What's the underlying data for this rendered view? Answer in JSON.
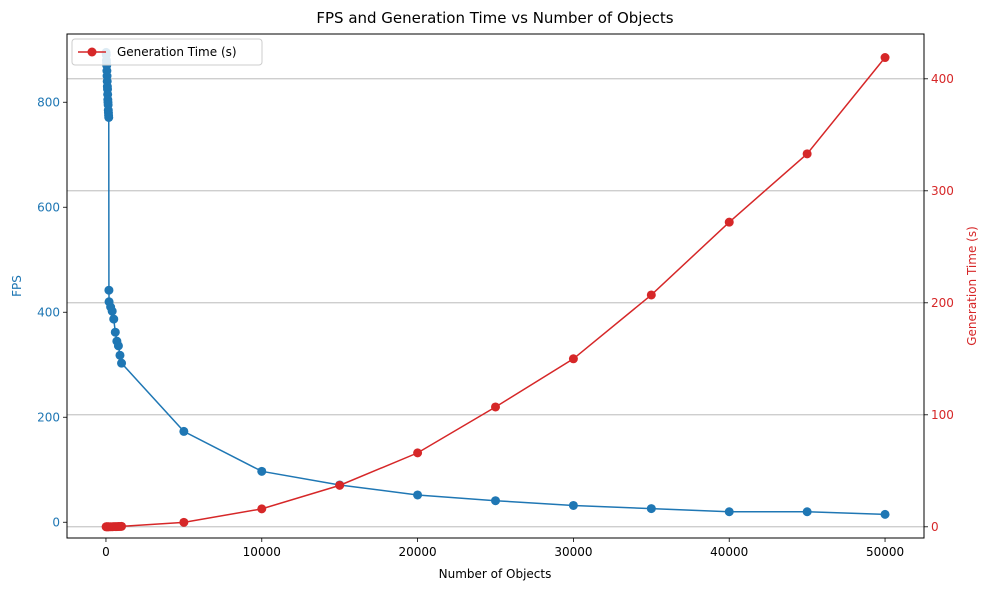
{
  "chart_data": {
    "type": "line",
    "title": "FPS and Generation Time vs Number of Objects",
    "xlabel": "Number of Objects",
    "ylabel_left": "FPS",
    "ylabel_right": "Generation Time (s)",
    "xlim": [
      -2500,
      52500
    ],
    "ylim_left": [
      -30,
      930
    ],
    "ylim_right": [
      -10,
      440
    ],
    "x_ticks": [
      0,
      10000,
      20000,
      30000,
      40000,
      50000
    ],
    "y_left_ticks": [
      0,
      200,
      400,
      600,
      800
    ],
    "y_right_ticks": [
      0,
      100,
      200,
      300,
      400
    ],
    "grid": "horizontal (right axis)",
    "legend_position": "upper left",
    "colors": {
      "fps": "#1f77b4",
      "gen": "#d62728",
      "grid": "#b0b0b0"
    },
    "series": [
      {
        "name": "",
        "axis": "left",
        "x": [
          10,
          20,
          30,
          40,
          50,
          60,
          70,
          80,
          90,
          100,
          110,
          120,
          130,
          140,
          150,
          160,
          170,
          180,
          190,
          200,
          300,
          400,
          500,
          600,
          700,
          800,
          900,
          1000,
          5000,
          10000,
          15000,
          20000,
          25000,
          30000,
          35000,
          40000,
          45000,
          50000
        ],
        "y": [
          895,
          890,
          880,
          875,
          870,
          860,
          850,
          840,
          830,
          825,
          815,
          805,
          800,
          795,
          785,
          780,
          775,
          771,
          442,
          420,
          410,
          402,
          387,
          362,
          345,
          336,
          318,
          303,
          173,
          97,
          71,
          52,
          41,
          32,
          26,
          20,
          20,
          15
        ]
      },
      {
        "name": "Generation Time (s)",
        "axis": "right",
        "x": [
          10,
          50,
          100,
          150,
          200,
          300,
          400,
          500,
          600,
          700,
          800,
          900,
          1000,
          5000,
          10000,
          15000,
          20000,
          25000,
          30000,
          35000,
          40000,
          45000,
          50000
        ],
        "y": [
          0,
          0,
          0,
          0,
          0.1,
          0.1,
          0.1,
          0.2,
          0.2,
          0.2,
          0.3,
          0.3,
          0.4,
          4,
          16,
          37,
          66,
          107,
          150,
          207,
          272,
          333,
          419
        ]
      }
    ]
  }
}
